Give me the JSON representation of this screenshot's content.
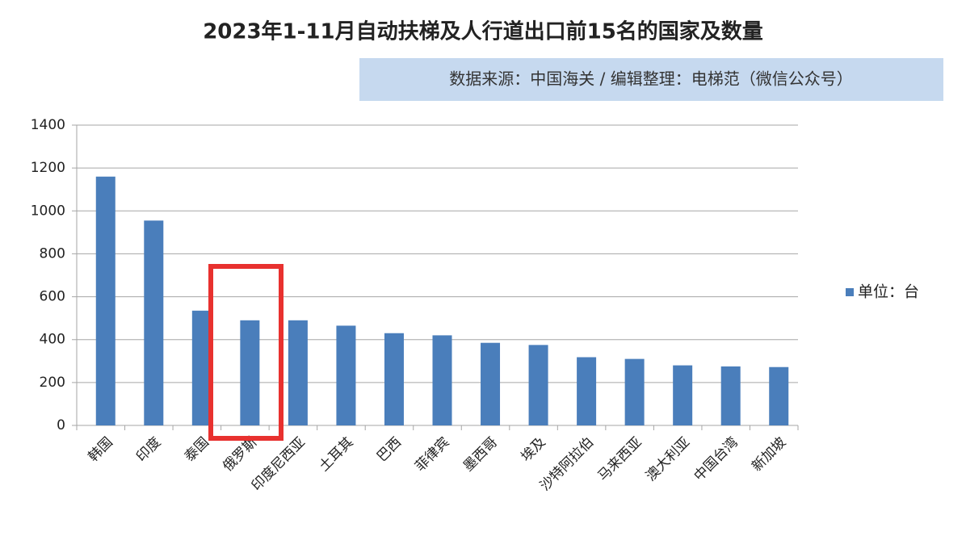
{
  "chart_data": {
    "type": "bar",
    "title": "2023年1-11月自动扶梯及人行道出口前15名的国家及数量",
    "subtitle": "数据来源：中国海关 / 编辑整理：电梯范（微信公众号）",
    "categories": [
      "韩国",
      "印度",
      "泰国",
      "俄罗斯",
      "印度尼西亚",
      "土耳其",
      "巴西",
      "菲律宾",
      "墨西哥",
      "埃及",
      "沙特阿拉伯",
      "马来西亚",
      "澳大利亚",
      "中国台湾",
      "新加坡"
    ],
    "series": [
      {
        "name": "单位：台",
        "color": "#4a7ebb",
        "values": [
          1160,
          955,
          535,
          490,
          490,
          465,
          430,
          420,
          385,
          375,
          318,
          310,
          280,
          275,
          272
        ]
      }
    ],
    "ylim": [
      0,
      1400
    ],
    "yticks": [
      0,
      200,
      400,
      600,
      800,
      1000,
      1200,
      1400
    ],
    "grid": true,
    "legend": "right"
  }
}
